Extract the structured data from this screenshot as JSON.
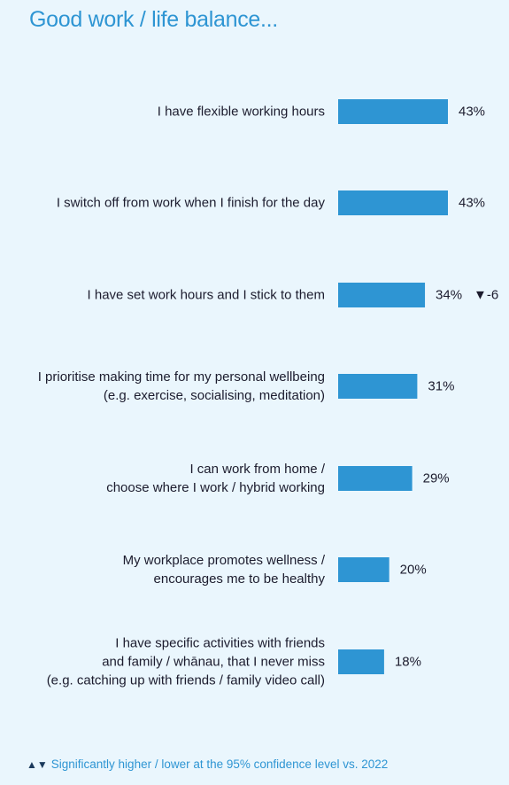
{
  "title": "Good work / life balance...",
  "footnote": {
    "arrows": "▲▼",
    "text": "Significantly higher / lower at the 95% confidence level vs. 2022"
  },
  "chart_data": {
    "type": "bar",
    "orientation": "horizontal",
    "title": "Good work / life balance...",
    "categories": [
      [
        "I have flexible working hours"
      ],
      [
        "I switch off from work when I finish for the day"
      ],
      [
        "I have set work hours and I stick to them"
      ],
      [
        "I prioritise making time for my personal wellbeing",
        "(e.g. exercise, socialising, meditation)"
      ],
      [
        "I can work from home /",
        "choose where I work / hybrid working"
      ],
      [
        "My workplace promotes wellness /",
        "encourages me to be healthy"
      ],
      [
        "I have specific activities with friends",
        "and family / whānau, that I never miss",
        "(e.g. catching up with friends / family video call)"
      ]
    ],
    "values": [
      43,
      43,
      34,
      31,
      29,
      20,
      18
    ],
    "value_labels": [
      "43%",
      "43%",
      "34%",
      "31%",
      "29%",
      "20%",
      "18%"
    ],
    "changes": [
      "",
      "",
      "▼-6",
      "",
      "",
      "",
      ""
    ],
    "bar_color": "#2e95d3",
    "xlim": [
      0,
      100
    ],
    "grid": false,
    "legend": "none"
  }
}
